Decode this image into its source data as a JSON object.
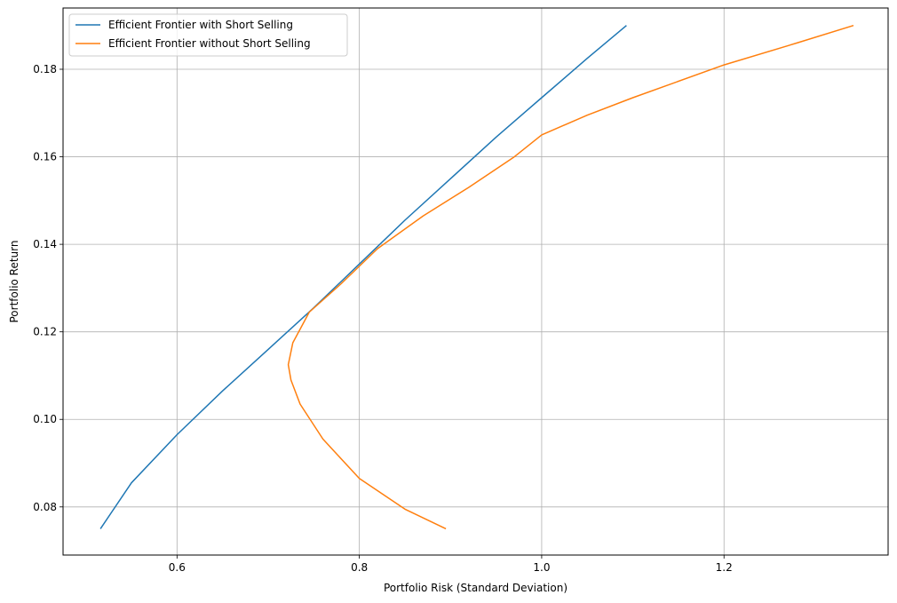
{
  "chart_data": {
    "type": "line",
    "title": "",
    "xlabel": "Portfolio Risk (Standard Deviation)",
    "ylabel": "Portfolio Return",
    "xlim": [
      0.475,
      1.38
    ],
    "ylim": [
      0.069,
      0.194
    ],
    "xticks": [
      0.6,
      0.8,
      1.0,
      1.2
    ],
    "xtick_labels": [
      "0.6",
      "0.8",
      "1.0",
      "1.2"
    ],
    "yticks": [
      0.08,
      0.1,
      0.12,
      0.14,
      0.16,
      0.18
    ],
    "ytick_labels": [
      "0.08",
      "0.10",
      "0.12",
      "0.14",
      "0.16",
      "0.18"
    ],
    "grid": true,
    "legend_position": "top-left",
    "series": [
      {
        "name": "Efficient Frontier with Short Selling",
        "color": "#1f77b4",
        "x": [
          0.516,
          0.55,
          0.6,
          0.65,
          0.7,
          0.75,
          0.8,
          0.85,
          0.9,
          0.95,
          1.0,
          1.05,
          1.093
        ],
        "y": [
          0.075,
          0.0855,
          0.0965,
          0.1065,
          0.116,
          0.1255,
          0.1355,
          0.1455,
          0.155,
          0.1645,
          0.1735,
          0.1825,
          0.19
        ]
      },
      {
        "name": "Efficient Frontier without Short Selling",
        "color": "#ff7f0e",
        "x": [
          0.895,
          0.85,
          0.8,
          0.76,
          0.735,
          0.725,
          0.722,
          0.727,
          0.745,
          0.78,
          0.82,
          0.87,
          0.92,
          0.97,
          1.0,
          1.05,
          1.1,
          1.2,
          1.28,
          1.342
        ],
        "y": [
          0.075,
          0.0795,
          0.0865,
          0.0955,
          0.1035,
          0.109,
          0.1125,
          0.1175,
          0.1245,
          0.131,
          0.139,
          0.1465,
          0.153,
          0.16,
          0.165,
          0.1695,
          0.1735,
          0.181,
          0.186,
          0.19
        ]
      }
    ]
  }
}
